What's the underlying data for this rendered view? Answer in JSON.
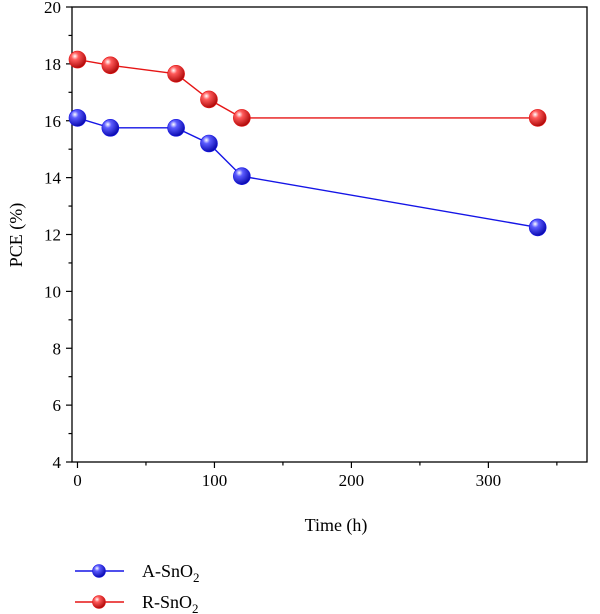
{
  "chart_data": {
    "type": "line",
    "title": "",
    "xlabel": "Time (h)",
    "ylabel": "PCE (%)",
    "xlim": [
      -4,
      372
    ],
    "ylim": [
      4,
      20
    ],
    "xticks": [
      0,
      100,
      200,
      300
    ],
    "yticks": [
      4,
      6,
      8,
      10,
      12,
      14,
      16,
      18,
      20
    ],
    "x_tick_labels": [
      "0",
      "100",
      "200",
      "300"
    ],
    "y_tick_labels": [
      "4",
      "6",
      "8",
      "10",
      "12",
      "14",
      "16",
      "18",
      "20"
    ],
    "grid": false,
    "legend_position": "bottom-left, below plot",
    "series": [
      {
        "name": "A-SnO2",
        "legend_base": "A-SnO",
        "legend_sub": "2",
        "color": "#1515e6",
        "x": [
          0,
          24,
          72,
          96,
          120,
          336
        ],
        "y": [
          16.1,
          15.75,
          15.75,
          15.2,
          14.05,
          12.25
        ]
      },
      {
        "name": "R-SnO2",
        "legend_base": "R-SnO",
        "legend_sub": "2",
        "color": "#e61515",
        "x": [
          0,
          24,
          72,
          96,
          120,
          336
        ],
        "y": [
          18.15,
          17.95,
          17.65,
          16.75,
          16.1,
          16.1
        ]
      }
    ]
  }
}
